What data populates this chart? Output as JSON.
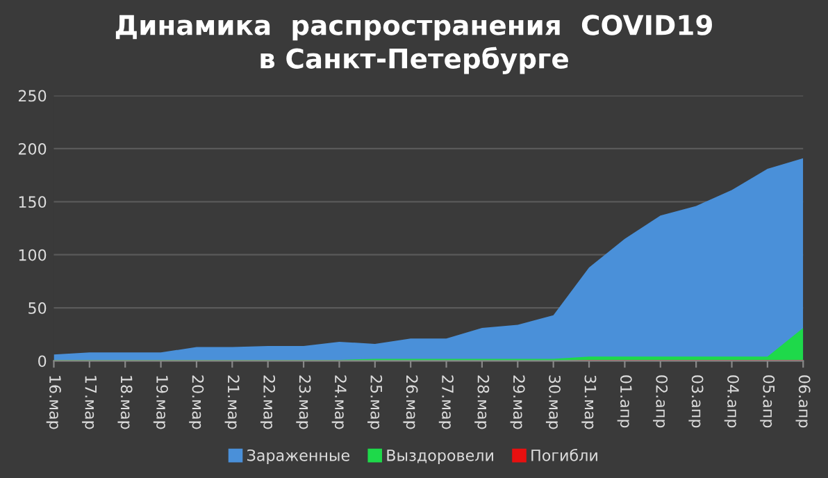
{
  "chart_data": {
    "type": "area",
    "title": "Динамика  распространения  COVID19\nв Санкт-Петербурге",
    "categories": [
      "16.мар",
      "17.мар",
      "18.мар",
      "19.мар",
      "20.мар",
      "21.мар",
      "22.мар",
      "23.мар",
      "24.мар",
      "25.мар",
      "26.мар",
      "27.мар",
      "28.мар",
      "29.мар",
      "30.мар",
      "31.мар",
      "01.апр",
      "02.апр",
      "03.апр",
      "04.апр",
      "05.апр",
      "06.апр"
    ],
    "series": [
      {
        "name": "Зараженные",
        "color": "#4a90d9",
        "values": [
          6,
          8,
          8,
          8,
          13,
          13,
          14,
          14,
          18,
          16,
          21,
          21,
          31,
          34,
          43,
          88,
          115,
          137,
          146,
          161,
          181,
          191
        ]
      },
      {
        "name": "Выздоровели",
        "color": "#1ed94a",
        "values": [
          1,
          1,
          1,
          1,
          1,
          1,
          1,
          1,
          1,
          2,
          2,
          2,
          2,
          2,
          2,
          4,
          4,
          4,
          4,
          4,
          4,
          31
        ]
      },
      {
        "name": "Погибли",
        "color": "#e81010",
        "values": [
          0,
          0,
          0,
          0,
          0,
          0,
          0,
          0,
          0,
          0,
          0,
          0,
          0,
          0,
          0,
          1,
          1,
          1,
          1,
          1,
          1,
          1
        ]
      }
    ],
    "ylim": [
      0,
      250
    ],
    "yticks": [
      0,
      50,
      100,
      150,
      200,
      250
    ],
    "grid": "y",
    "legend": "bottom"
  }
}
